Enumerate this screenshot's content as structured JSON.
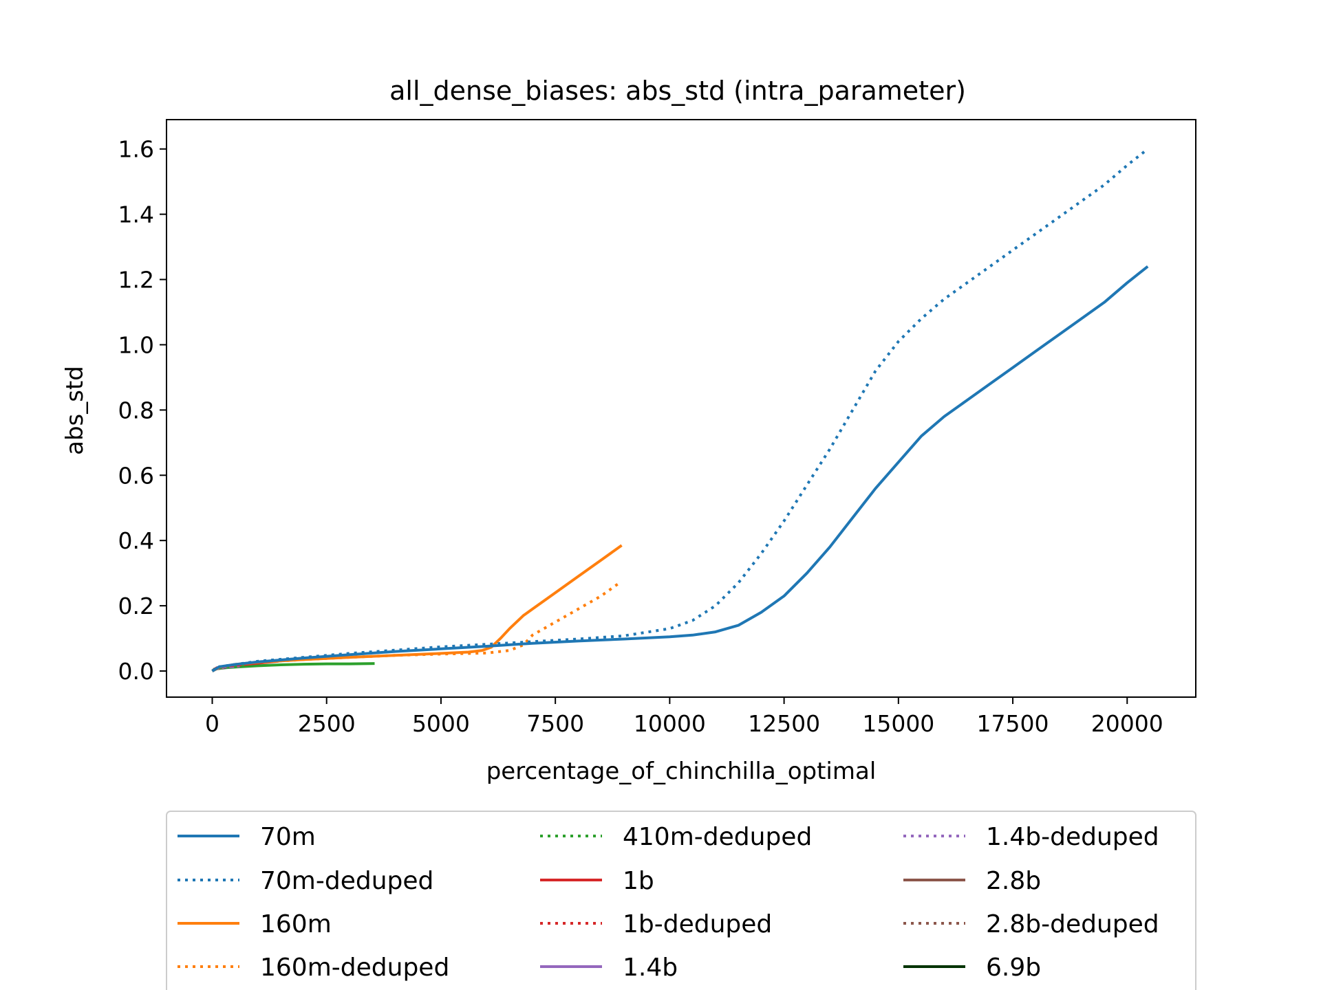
{
  "chart_data": {
    "type": "line",
    "title": "all_dense_biases: abs_std (intra_parameter)",
    "xlabel": "percentage_of_chinchilla_optimal",
    "ylabel": "abs_std",
    "xlim": [
      -1000,
      21500
    ],
    "ylim": [
      -0.08,
      1.69
    ],
    "xticks": [
      0,
      2500,
      5000,
      7500,
      10000,
      12500,
      15000,
      17500,
      20000
    ],
    "xtick_labels": [
      "0",
      "2500",
      "5000",
      "7500",
      "10000",
      "12500",
      "15000",
      "17500",
      "20000"
    ],
    "yticks": [
      0.0,
      0.2,
      0.4,
      0.6,
      0.8,
      1.0,
      1.2,
      1.4,
      1.6
    ],
    "ytick_labels": [
      "0.0",
      "0.2",
      "0.4",
      "0.6",
      "0.8",
      "1.0",
      "1.2",
      "1.4",
      "1.6"
    ],
    "grid": false,
    "legend": {
      "placement": "below",
      "columns": 3
    },
    "series": [
      {
        "name": "70m",
        "color": "#1f77b4",
        "dash": "solid",
        "x": [
          0,
          150,
          500,
          1000,
          2000,
          3000,
          4000,
          5000,
          6000,
          7000,
          8000,
          9000,
          10000,
          10500,
          11000,
          11500,
          12000,
          12500,
          13000,
          13500,
          14000,
          14500,
          15000,
          15500,
          16000,
          16500,
          17000,
          17500,
          18000,
          18500,
          19000,
          19500,
          20000,
          20450
        ],
        "y": [
          0.0,
          0.013,
          0.02,
          0.028,
          0.04,
          0.05,
          0.06,
          0.068,
          0.076,
          0.085,
          0.092,
          0.098,
          0.105,
          0.11,
          0.12,
          0.14,
          0.18,
          0.23,
          0.3,
          0.38,
          0.47,
          0.56,
          0.64,
          0.72,
          0.78,
          0.83,
          0.88,
          0.93,
          0.98,
          1.03,
          1.08,
          1.13,
          1.19,
          1.24
        ]
      },
      {
        "name": "70m-deduped",
        "color": "#1f77b4",
        "dash": "dotted",
        "x": [
          0,
          150,
          500,
          1000,
          2000,
          3000,
          4000,
          5000,
          6000,
          7000,
          8000,
          9000,
          10000,
          10500,
          11000,
          11500,
          12000,
          12500,
          13000,
          13500,
          14000,
          14500,
          15000,
          15500,
          16000,
          16500,
          17000,
          17500,
          18000,
          18500,
          19000,
          19500,
          20000,
          20450
        ],
        "y": [
          0.0,
          0.013,
          0.02,
          0.03,
          0.042,
          0.054,
          0.064,
          0.074,
          0.082,
          0.09,
          0.098,
          0.108,
          0.13,
          0.155,
          0.2,
          0.27,
          0.36,
          0.46,
          0.57,
          0.68,
          0.8,
          0.92,
          1.01,
          1.08,
          1.14,
          1.19,
          1.24,
          1.29,
          1.34,
          1.39,
          1.44,
          1.49,
          1.55,
          1.6
        ]
      },
      {
        "name": "160m",
        "color": "#ff7f0e",
        "dash": "solid",
        "x": [
          0,
          150,
          500,
          1000,
          2000,
          3000,
          4000,
          5000,
          5600,
          5900,
          6100,
          6300,
          6500,
          6800,
          7000,
          7500,
          8000,
          8500,
          8950
        ],
        "y": [
          0.0,
          0.012,
          0.02,
          0.027,
          0.035,
          0.042,
          0.048,
          0.054,
          0.058,
          0.063,
          0.073,
          0.1,
          0.13,
          0.17,
          0.19,
          0.24,
          0.29,
          0.34,
          0.385
        ]
      },
      {
        "name": "160m-deduped",
        "color": "#ff7f0e",
        "dash": "dotted",
        "x": [
          0,
          150,
          500,
          1000,
          2000,
          3000,
          4000,
          5000,
          6000,
          6500,
          6800,
          7000,
          7500,
          8000,
          8500,
          8900
        ],
        "y": [
          0.0,
          0.012,
          0.02,
          0.027,
          0.035,
          0.042,
          0.048,
          0.052,
          0.055,
          0.063,
          0.08,
          0.11,
          0.15,
          0.19,
          0.23,
          0.27
        ]
      },
      {
        "name": "410m-deduped",
        "color": "#2ca02c",
        "dash": "dotted",
        "x": [
          0,
          100,
          300,
          700
        ],
        "y": [
          0.0,
          0.008,
          0.012,
          0.015
        ]
      },
      {
        "name": "1b",
        "color": "#d62728",
        "dash": "solid",
        "x": [
          0,
          100,
          300,
          700,
          1000,
          1450
        ],
        "y": [
          0.0,
          0.01,
          0.015,
          0.02,
          0.024,
          0.03
        ]
      },
      {
        "name": "1b-deduped",
        "color": "#d62728",
        "dash": "dotted",
        "x": [
          0,
          100,
          300,
          600
        ],
        "y": [
          0.0,
          0.009,
          0.013,
          0.017
        ]
      },
      {
        "name": "1.4b",
        "color": "#9467bd",
        "dash": "solid",
        "x": [
          0,
          100,
          300,
          600
        ],
        "y": [
          0.0,
          0.008,
          0.012,
          0.015
        ]
      },
      {
        "name": "1.4b-deduped",
        "color": "#9467bd",
        "dash": "dotted",
        "x": [
          0,
          100,
          300,
          500
        ],
        "y": [
          0.0,
          0.008,
          0.011,
          0.014
        ]
      },
      {
        "name": "2.8b",
        "color": "#8c564b",
        "dash": "solid",
        "x": [
          0,
          100,
          250
        ],
        "y": [
          0.0,
          0.007,
          0.01
        ]
      },
      {
        "name": "2.8b-deduped",
        "color": "#8c564b",
        "dash": "dotted",
        "x": [
          0,
          100,
          250
        ],
        "y": [
          0.0,
          0.007,
          0.01
        ]
      },
      {
        "name": "6.9b",
        "color": "#003300",
        "dash": "solid",
        "x": [
          0,
          50,
          150,
          300
        ],
        "y": [
          0.0,
          0.006,
          0.009,
          0.011
        ]
      },
      {
        "name": "",
        "color": "#2ca02c",
        "dash": "solid",
        "legend": false,
        "x": [
          0,
          100,
          300,
          600,
          1000,
          1500,
          2000,
          2500,
          3000,
          3550
        ],
        "y": [
          0.0,
          0.007,
          0.01,
          0.013,
          0.016,
          0.019,
          0.021,
          0.022,
          0.022,
          0.023
        ]
      }
    ]
  }
}
